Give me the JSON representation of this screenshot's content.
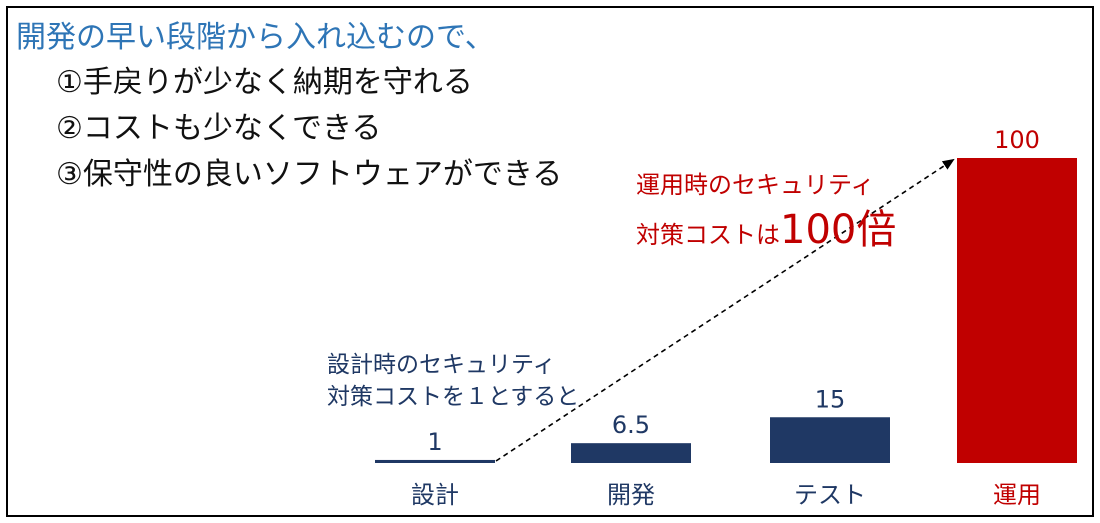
{
  "headline": "開発の早い段階から入れ込むので、",
  "points": [
    "①手戻りが少なく納期を守れる",
    "②コストも少なくできる",
    "③保守性の良いソフトウェアができる"
  ],
  "chart_data": {
    "type": "bar",
    "categories": [
      "設計",
      "開発",
      "テスト",
      "運用"
    ],
    "values": [
      1,
      6.5,
      15,
      100
    ],
    "value_labels": [
      "1",
      "6.5",
      "15",
      "100"
    ],
    "bar_colors": [
      "#1f3864",
      "#1f3864",
      "#1f3864",
      "#c00000"
    ],
    "ylim": [
      0,
      100
    ],
    "annotation_low": {
      "lines": [
        "設計時のセキュリティ",
        "対策コストを１とすると"
      ],
      "color": "#1f3864"
    },
    "annotation_high": {
      "line1": "運用時のセキュリティ",
      "line2_prefix": "対策コストは",
      "line2_emphasis": "100倍",
      "color": "#c00000"
    }
  }
}
